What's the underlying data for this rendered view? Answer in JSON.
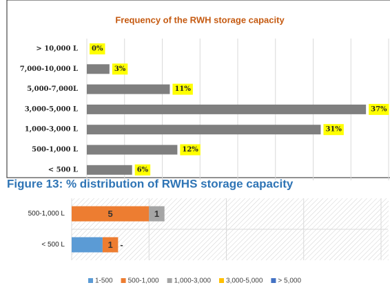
{
  "chart_data": [
    {
      "type": "bar",
      "orientation": "horizontal",
      "title": "Frequency of the RWH storage capacity",
      "categories": [
        "> 10,000 L",
        "7,000-10,000 L",
        "5,000-7,000L",
        "3,000-5,000 L",
        "1,000-3,000 L",
        "500-1,000 L",
        "< 500 L"
      ],
      "values": [
        0,
        3,
        11,
        37,
        31,
        12,
        6
      ],
      "value_labels": [
        "0%",
        "3%",
        "11%",
        "37%",
        "31%",
        "12%",
        "6%"
      ],
      "color": "#7f7f7f",
      "xlim": [
        0,
        40
      ],
      "xticks": [
        0,
        5,
        10,
        15,
        20,
        25,
        30,
        35,
        40
      ],
      "grid": true
    },
    {
      "type": "stacked-bar",
      "orientation": "horizontal",
      "caption": "Figure 13: % distribution of RWHS storage capacity",
      "categories": [
        "500-1,000 L",
        "< 500 L"
      ],
      "series": [
        {
          "name": "1-500",
          "color": "#5b9bd5",
          "values": [
            0,
            2
          ],
          "value_labels": [
            null,
            null
          ]
        },
        {
          "name": "500-1,000",
          "color": "#ed7d31",
          "values": [
            5,
            1
          ],
          "value_labels": [
            "5",
            "1"
          ]
        },
        {
          "name": "1,000-3,000",
          "color": "#a5a5a5",
          "values": [
            1,
            0
          ],
          "value_labels": [
            "1",
            "-"
          ]
        },
        {
          "name": "3,000-5,000",
          "color": "#ffc000",
          "values": [
            0,
            0
          ],
          "value_labels": [
            null,
            null
          ]
        },
        {
          "name": "> 5,000",
          "color": "#4472c4",
          "values": [
            0,
            0
          ],
          "value_labels": [
            null,
            null
          ]
        }
      ],
      "xlim": [
        0,
        20
      ],
      "xticks": [
        0,
        5,
        10,
        15,
        20
      ],
      "grid": true,
      "legend": "bottom"
    }
  ]
}
